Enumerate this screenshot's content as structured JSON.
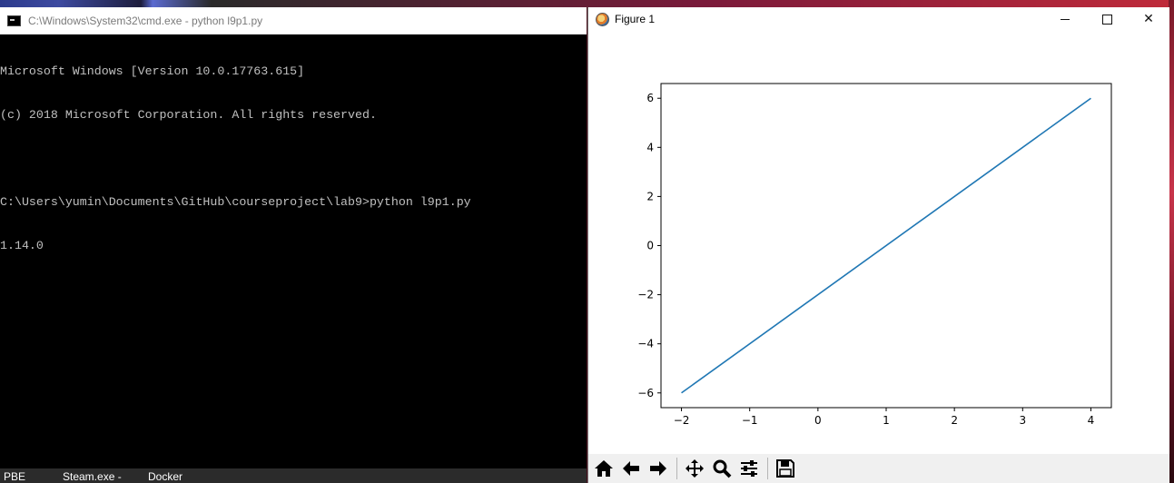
{
  "cmd_window": {
    "title": "C:\\Windows\\System32\\cmd.exe - python  l9p1.py",
    "lines": [
      "Microsoft Windows [Version 10.0.17763.615]",
      "(c) 2018 Microsoft Corporation. All rights reserved.",
      "",
      "C:\\Users\\yumin\\Documents\\GitHub\\courseproject\\lab9>python l9p1.py",
      "1.14.0"
    ]
  },
  "figure_window": {
    "title": "Figure 1",
    "toolbar": [
      "home-icon",
      "back-arrow-icon",
      "forward-arrow-icon",
      "pan-icon",
      "zoom-icon",
      "configure-subplots-icon",
      "save-icon"
    ]
  },
  "taskbar": {
    "items": [
      "PBE",
      "Steam.exe -",
      "Docker"
    ]
  },
  "colors": {
    "line": "#1f77b4",
    "terminal_text": "#c0c0c0",
    "terminal_bg": "#000000"
  },
  "chart_data": {
    "type": "line",
    "x": [
      -2,
      4
    ],
    "series": [
      {
        "values": [
          -6,
          6
        ]
      }
    ],
    "xticks": [
      "−2",
      "−1",
      "0",
      "1",
      "2",
      "3",
      "4"
    ],
    "yticks": [
      "−6",
      "−4",
      "−2",
      "0",
      "2",
      "4",
      "6"
    ],
    "xlim": [
      -2.3,
      4.3
    ],
    "ylim": [
      -6.6,
      6.6
    ],
    "grid": false
  }
}
